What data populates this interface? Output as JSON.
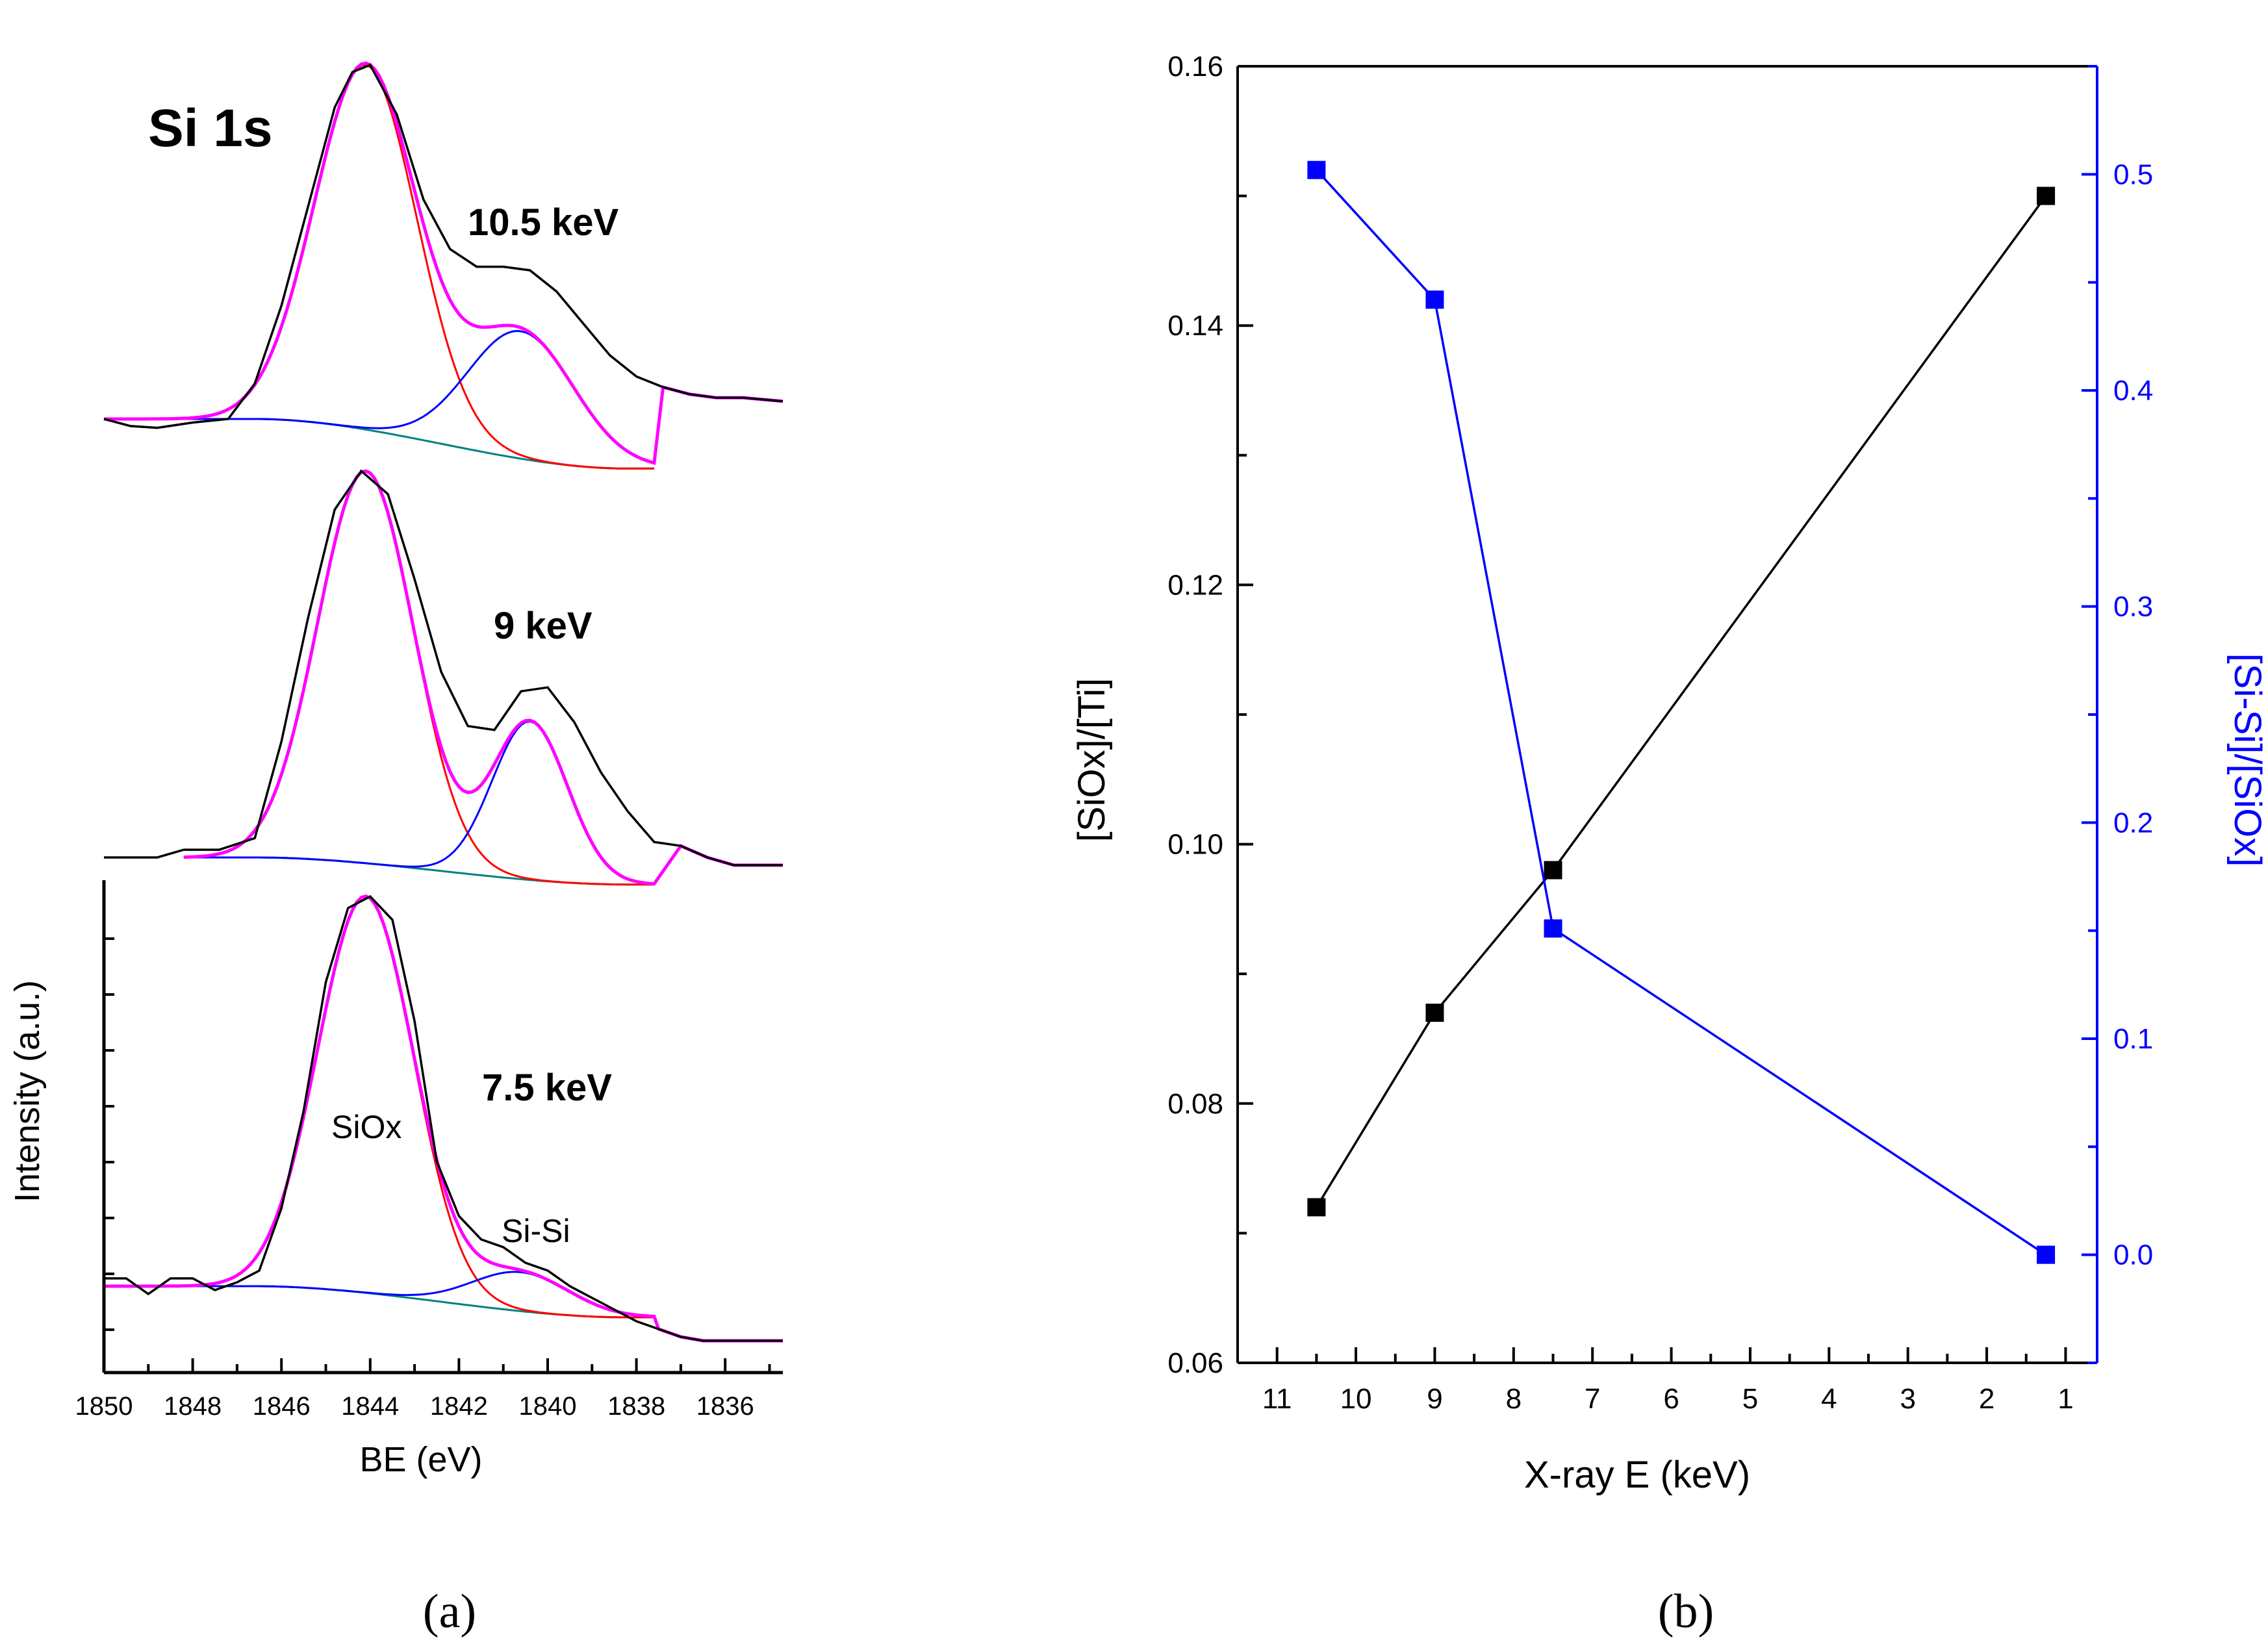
{
  "chart_data": [
    {
      "panel": "a",
      "caption": "(a)",
      "type": "line",
      "title": "Si 1s",
      "xlabel": "BE (eV)",
      "ylabel": "Intensity (a.u.)",
      "xlim": [
        1850,
        1834.7
      ],
      "x_ticks": [
        "1850",
        "1848",
        "1846",
        "1844",
        "1842",
        "1840",
        "1838",
        "1836"
      ],
      "annotations": {
        "peak1": "SiOx",
        "peak2": "Si-Si"
      },
      "colors": {
        "data": "#000000",
        "envelope": "#ff00ff",
        "siox": "#ff0000",
        "sisi": "#0000ff",
        "background": "#008080"
      },
      "series": [
        {
          "name": "10.5 keV",
          "label": "10.5 keV",
          "siox": {
            "center": 1844.1,
            "height": 1.0,
            "sigma": 1.15
          },
          "sisi": {
            "center": 1840.6,
            "height": 0.36,
            "sigma": 1.2
          },
          "data": [
            [
              1850,
              0.0
            ],
            [
              1849.4,
              -0.02
            ],
            [
              1848.8,
              -0.025
            ],
            [
              1848,
              -0.01
            ],
            [
              1847.2,
              0.0
            ],
            [
              1846.6,
              0.1
            ],
            [
              1846,
              0.32
            ],
            [
              1845.4,
              0.6
            ],
            [
              1844.8,
              0.88
            ],
            [
              1844.4,
              0.98
            ],
            [
              1844,
              1.0
            ],
            [
              1843.4,
              0.86
            ],
            [
              1842.8,
              0.62
            ],
            [
              1842.2,
              0.48
            ],
            [
              1841.6,
              0.43
            ],
            [
              1841,
              0.43
            ],
            [
              1840.4,
              0.42
            ],
            [
              1839.8,
              0.36
            ],
            [
              1839.2,
              0.27
            ],
            [
              1838.6,
              0.18
            ],
            [
              1838,
              0.12
            ],
            [
              1837.4,
              0.09
            ],
            [
              1836.8,
              0.07
            ],
            [
              1836.2,
              0.06
            ],
            [
              1835.6,
              0.06
            ],
            [
              1834.7,
              0.05
            ]
          ]
        },
        {
          "name": "9 keV",
          "label": "9 keV",
          "siox": {
            "center": 1844.1,
            "height": 1.0,
            "sigma": 1.08
          },
          "sisi": {
            "center": 1840.4,
            "height": 0.41,
            "sigma": 0.85
          },
          "data": [
            [
              1850,
              0.0
            ],
            [
              1849.4,
              0.0
            ],
            [
              1848.8,
              0.0
            ],
            [
              1848.2,
              0.02
            ],
            [
              1847.4,
              0.02
            ],
            [
              1846.6,
              0.05
            ],
            [
              1846,
              0.3
            ],
            [
              1845.4,
              0.62
            ],
            [
              1844.8,
              0.9
            ],
            [
              1844.2,
              1.0
            ],
            [
              1843.6,
              0.94
            ],
            [
              1843,
              0.72
            ],
            [
              1842.4,
              0.48
            ],
            [
              1841.8,
              0.34
            ],
            [
              1841.2,
              0.33
            ],
            [
              1840.6,
              0.43
            ],
            [
              1840,
              0.44
            ],
            [
              1839.4,
              0.35
            ],
            [
              1838.8,
              0.22
            ],
            [
              1838.2,
              0.12
            ],
            [
              1837.6,
              0.04
            ],
            [
              1837,
              0.03
            ],
            [
              1836.4,
              0.0
            ],
            [
              1835.8,
              -0.02
            ],
            [
              1835.2,
              -0.02
            ],
            [
              1834.7,
              -0.02
            ]
          ]
        },
        {
          "name": "7.5 keV",
          "label": "7.5 keV",
          "siox": {
            "center": 1844.1,
            "height": 1.0,
            "sigma": 1.08
          },
          "sisi": {
            "center": 1840.6,
            "height": 0.1,
            "sigma": 1.1
          },
          "data": [
            [
              1850,
              0.02
            ],
            [
              1849.5,
              0.02
            ],
            [
              1849,
              -0.02
            ],
            [
              1848.5,
              0.02
            ],
            [
              1848,
              0.02
            ],
            [
              1847.5,
              -0.01
            ],
            [
              1847,
              0.01
            ],
            [
              1846.5,
              0.04
            ],
            [
              1846,
              0.2
            ],
            [
              1845.5,
              0.45
            ],
            [
              1845,
              0.78
            ],
            [
              1844.5,
              0.97
            ],
            [
              1844,
              1.0
            ],
            [
              1843.5,
              0.94
            ],
            [
              1843,
              0.68
            ],
            [
              1842.5,
              0.32
            ],
            [
              1842,
              0.18
            ],
            [
              1841.5,
              0.12
            ],
            [
              1841,
              0.1
            ],
            [
              1840.5,
              0.06
            ],
            [
              1840,
              0.04
            ],
            [
              1839.5,
              0.0
            ],
            [
              1839,
              -0.03
            ],
            [
              1838.5,
              -0.06
            ],
            [
              1838,
              -0.09
            ],
            [
              1837.5,
              -0.11
            ],
            [
              1837,
              -0.13
            ],
            [
              1836.5,
              -0.14
            ],
            [
              1836,
              -0.14
            ],
            [
              1835.5,
              -0.14
            ],
            [
              1834.7,
              -0.14
            ]
          ]
        }
      ]
    },
    {
      "panel": "b",
      "caption": "(b)",
      "type": "line",
      "xlabel": "X-ray E (keV)",
      "ylabel": "[SiOx]/[Ti]",
      "y2label": "[Si-Si]/[SiOx]",
      "xlim": [
        11.5,
        0.6
      ],
      "ylim": [
        0.06,
        0.16
      ],
      "y2lim": [
        -0.05,
        0.55
      ],
      "x_ticks": [
        "11",
        "10",
        "9",
        "8",
        "7",
        "6",
        "5",
        "4",
        "3",
        "2",
        "1"
      ],
      "y_ticks": [
        "0.06",
        "0.08",
        "0.10",
        "0.12",
        "0.14",
        "0.16"
      ],
      "y2_ticks": [
        "0.0",
        "0.1",
        "0.2",
        "0.3",
        "0.4",
        "0.5"
      ],
      "series": [
        {
          "name": "[SiOx]/[Ti]",
          "axis": "left",
          "color": "#000000",
          "x": [
            10.5,
            9,
            7.5,
            1.25
          ],
          "y": [
            0.072,
            0.087,
            0.098,
            0.15
          ]
        },
        {
          "name": "[Si-Si]/[SiOx]",
          "axis": "right",
          "color": "#0000ff",
          "x": [
            10.5,
            9,
            7.5,
            1.25
          ],
          "y": [
            0.502,
            0.442,
            0.151,
            0.0
          ]
        }
      ]
    }
  ]
}
